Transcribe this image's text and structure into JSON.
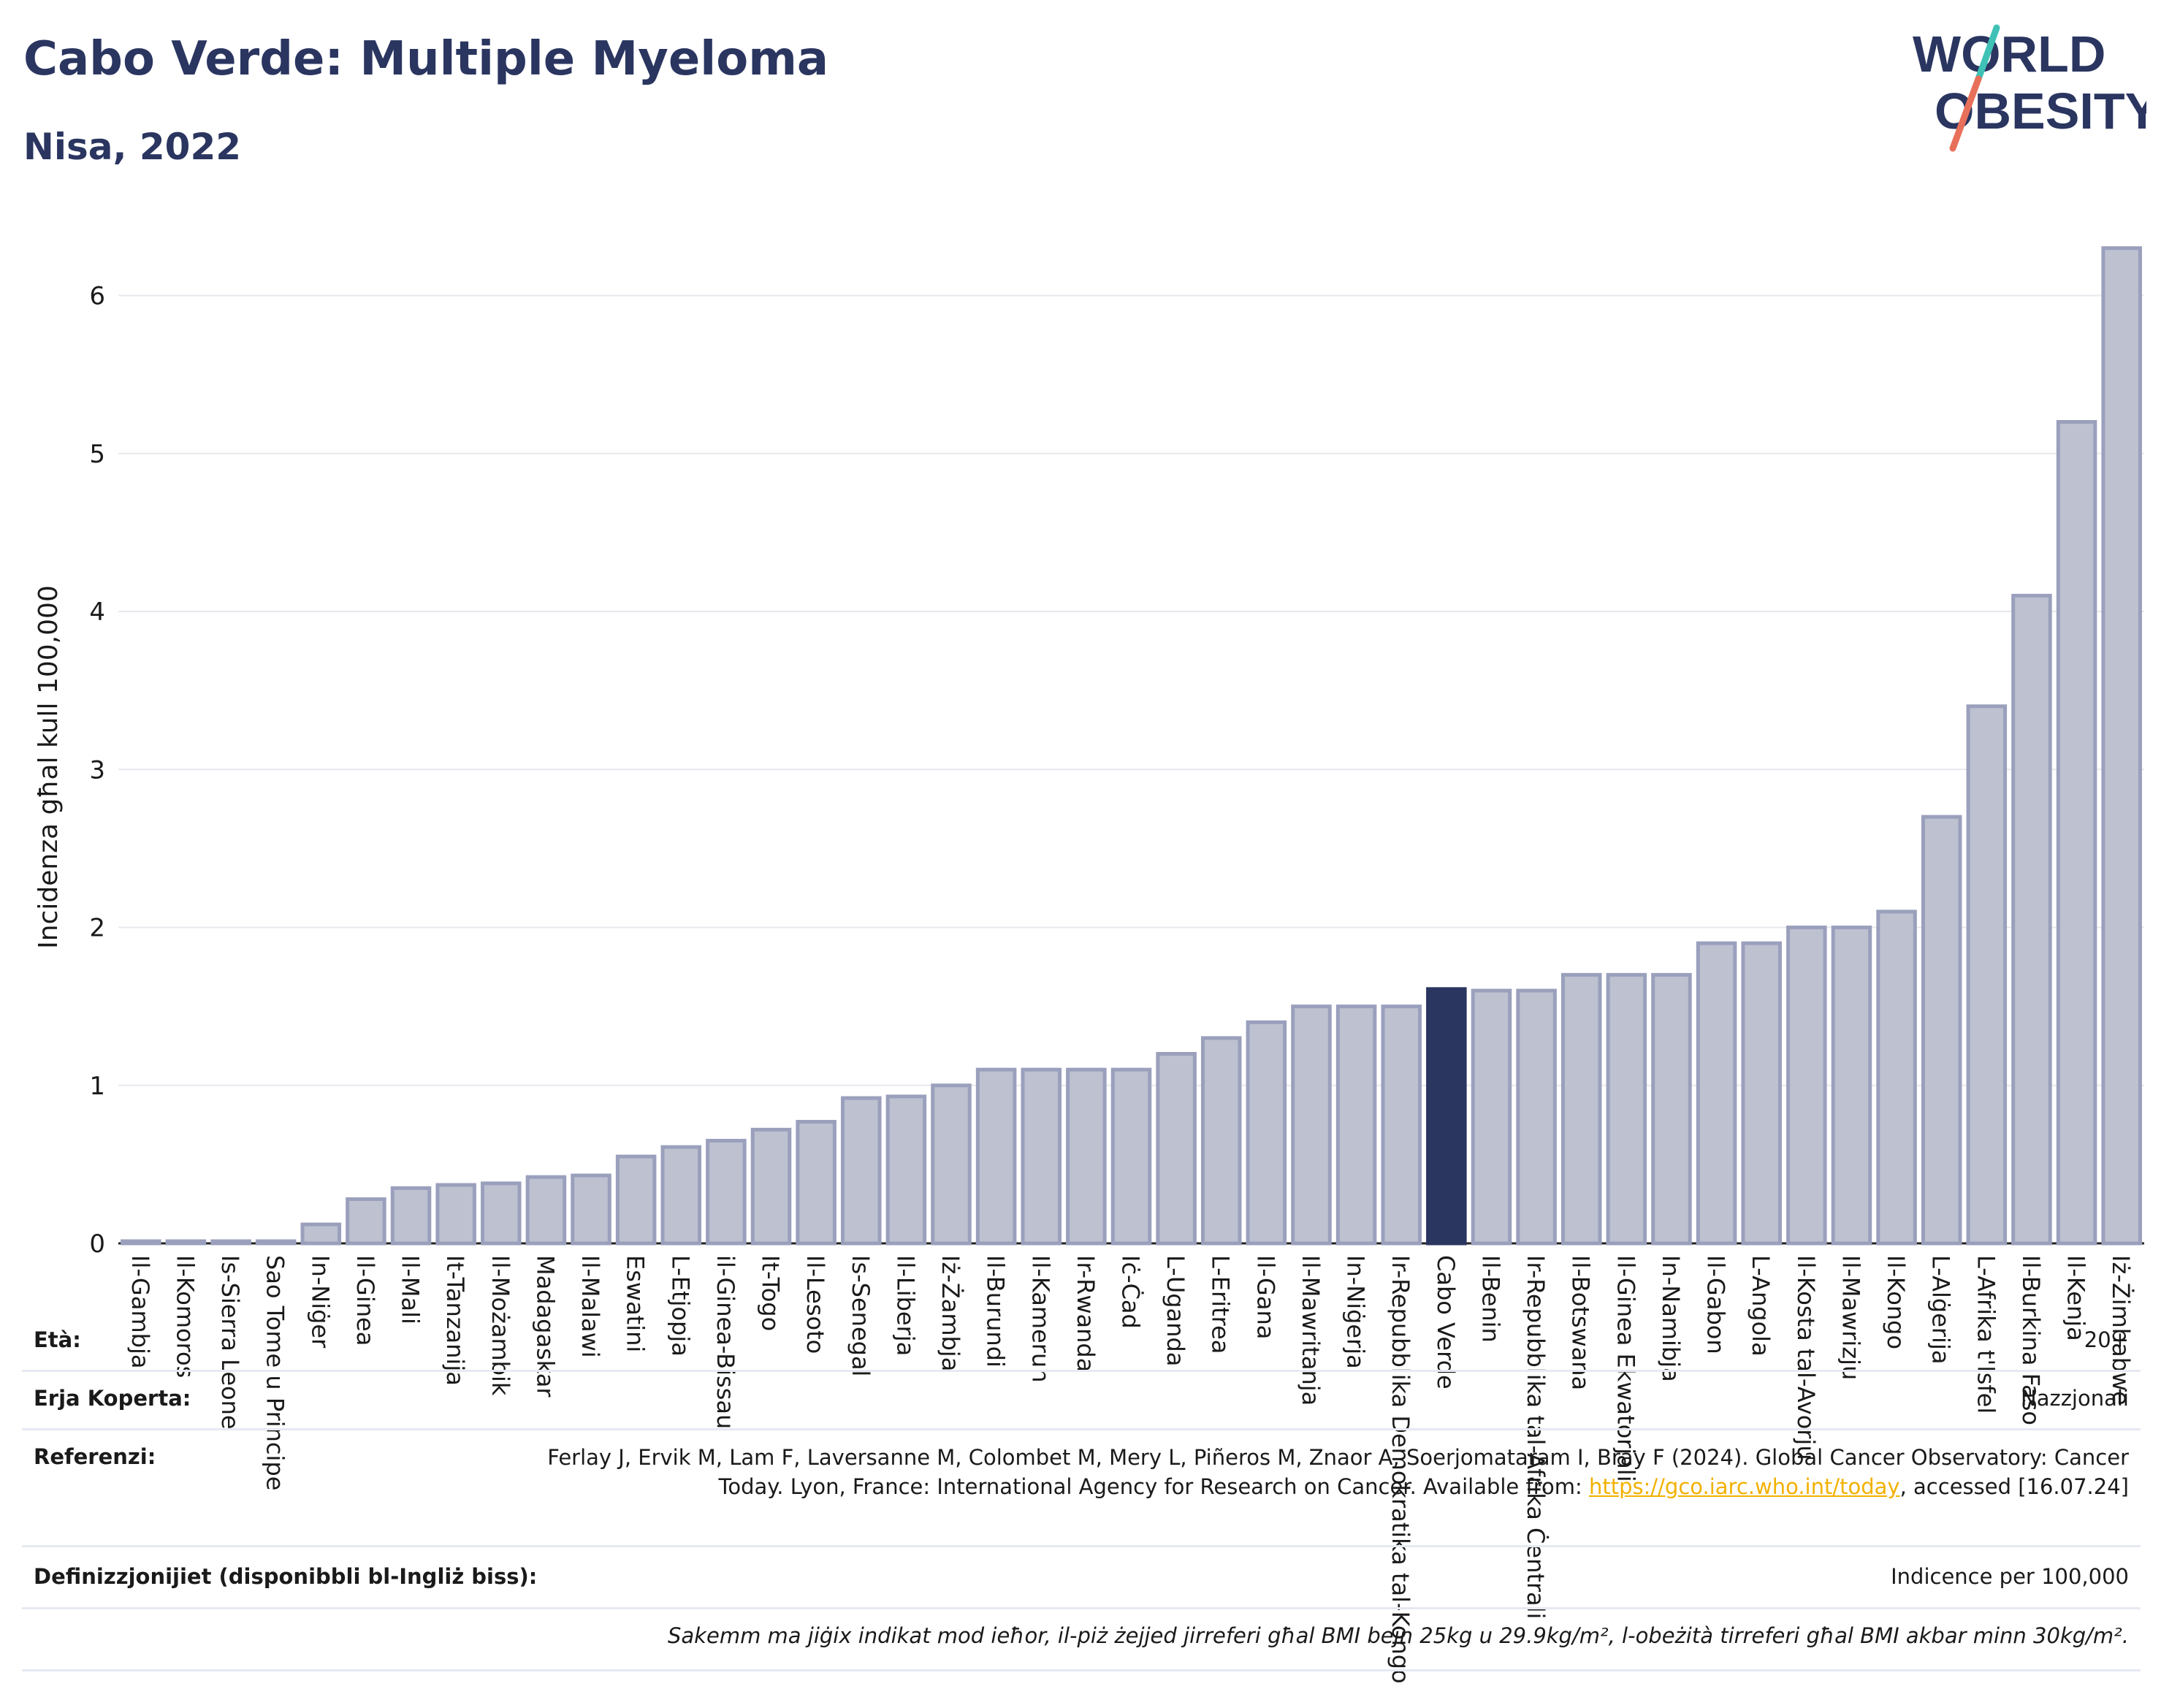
{
  "header": {
    "title": "Cabo Verde: Multiple Myeloma",
    "subtitle": "Nisa, 2022"
  },
  "logo": {
    "line1": "WORLD",
    "line2": "OBESITY",
    "colors": [
      "#2a3560",
      "#3fc1b6",
      "#e8705a"
    ]
  },
  "colors": {
    "bar": "#bdc1d0",
    "bar_border": "#9aa0bc",
    "highlight": "#2a3560",
    "grid": "#e8e8ee"
  },
  "chart_data": {
    "type": "bar",
    "ylabel": "Incidenza għal kull 100,000",
    "xlabel": "",
    "ylim": [
      0,
      6.4
    ],
    "yticks": [
      0,
      1,
      2,
      3,
      4,
      5,
      6
    ],
    "grid": true,
    "highlight": "Cabo Verde",
    "categories": [
      "Il-Gambja",
      "Il-Komoros",
      "Is-Sierra Leone",
      "Sao Tome u Principe",
      "In-Niġer",
      "Il-Ginea",
      "Il-Mali",
      "It-Tanzanija",
      "Il-Możambik",
      "Madagaskar",
      "Il-Malawi",
      "Eswatini",
      "L-Etjopja",
      "il-Ginea-Bissau",
      "It-Togo",
      "Il-Lesoto",
      "Is-Senegal",
      "Il-Liberja",
      "Iż-Żambja",
      "Il-Burundi",
      "Il-Kamerun",
      "Ir-Rwanda",
      "Iċ-Ċad",
      "L-Uganda",
      "L-Eritrea",
      "Il-Gana",
      "Il-Mawritanja",
      "In-Niġerja",
      "Ir-Repubblika Demokratika tal-Kongo",
      "Cabo Verde",
      "Il-Benin",
      "Ir-Repubblika tal-Afrika Ċentrali",
      "Il-Botswana",
      "Il-Ginea Ekwatorjali",
      "In-Namibja",
      "Il-Gabon",
      "L-Angola",
      "Il-Kosta tal-Avorju",
      "Il-Mawrizju",
      "Il-Kongo",
      "L-Alġerija",
      "L-Afrika t'Isfel",
      "Il-Burkina Faso",
      "Il-Kenja",
      "Iż-Żimbabwe"
    ],
    "values": [
      0.01,
      0.01,
      0.01,
      0.01,
      0.12,
      0.28,
      0.35,
      0.37,
      0.38,
      0.42,
      0.43,
      0.55,
      0.61,
      0.65,
      0.72,
      0.77,
      0.92,
      0.93,
      1.0,
      1.1,
      1.1,
      1.1,
      1.1,
      1.2,
      1.3,
      1.4,
      1.5,
      1.5,
      1.5,
      1.61,
      1.6,
      1.6,
      1.7,
      1.7,
      1.7,
      1.9,
      1.9,
      2.0,
      2.0,
      2.1,
      2.7,
      3.4,
      4.1,
      5.2,
      6.3
    ]
  },
  "info": {
    "age_label": "Età:",
    "age_value": "20+",
    "coverage_label": "Erja Koperta:",
    "coverage_value": "Nazzjonali",
    "references_label": "Referenzi:",
    "references_text": "Ferlay J, Ervik M, Lam F, Laversanne M, Colombet M, Mery L, Piñeros M, Znaor A, Soerjomataram I, Bray F (2024). Global Cancer Observatory: Cancer Today. Lyon, France: International Agency for Research on Cancer. Available from:",
    "references_link": "https://gco.iarc.who.int/today",
    "references_tail": ", accessed [16.07.24]",
    "definitions_label": "Definizzjonijiet (disponibbli bl-Ingliż biss):",
    "definitions_value": "Indicence per 100,000",
    "note": "Sakemm ma jiġix indikat mod ieħor, il-piż żejjed jirreferi għal BMI bejn 25kg u 29.9kg/m², l-obeżità tirreferi għal BMI akbar minn 30kg/m²."
  }
}
